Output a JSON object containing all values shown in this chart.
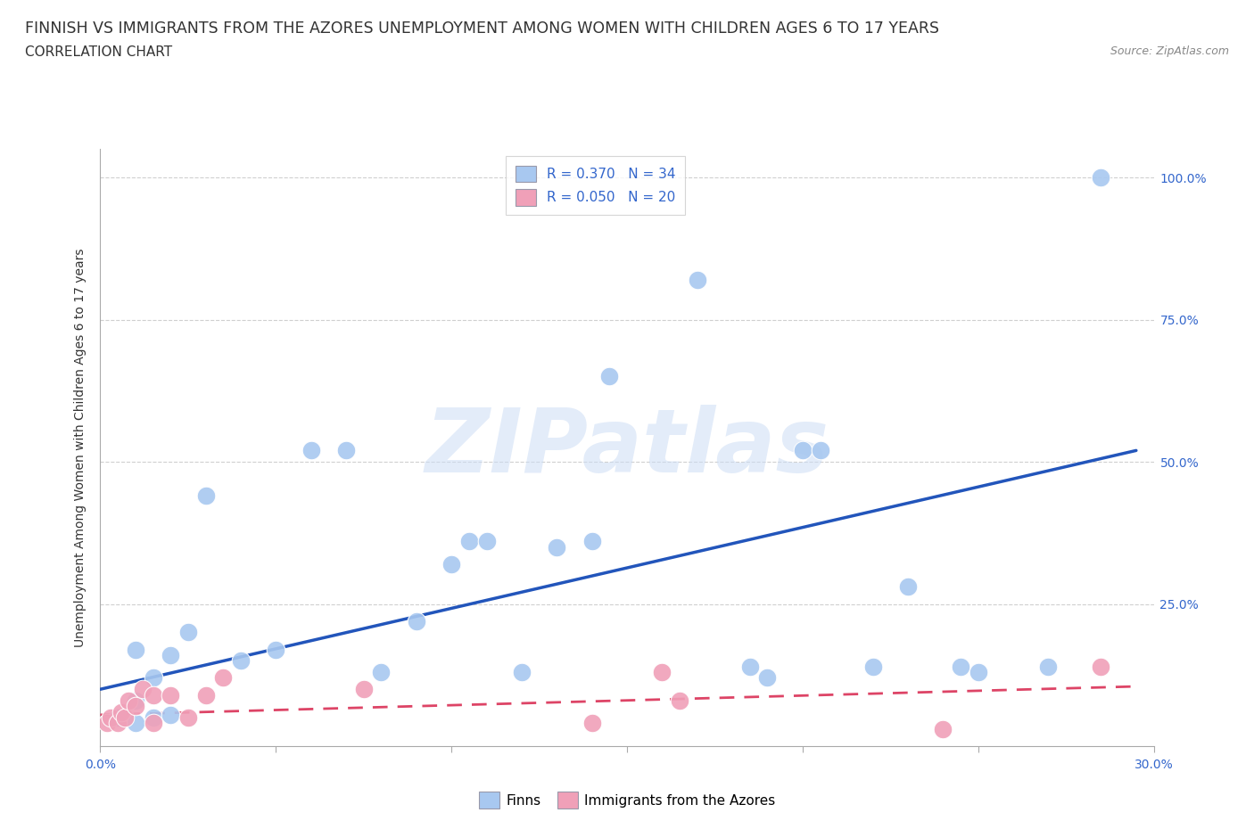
{
  "title": "FINNISH VS IMMIGRANTS FROM THE AZORES UNEMPLOYMENT AMONG WOMEN WITH CHILDREN AGES 6 TO 17 YEARS",
  "subtitle": "CORRELATION CHART",
  "source": "Source: ZipAtlas.com",
  "ylabel": "Unemployment Among Women with Children Ages 6 to 17 years",
  "xlim": [
    0.0,
    0.3
  ],
  "ylim": [
    0.0,
    1.05
  ],
  "xticks": [
    0.0,
    0.05,
    0.1,
    0.15,
    0.2,
    0.25,
    0.3
  ],
  "xtick_labels": [
    "0.0%",
    "",
    "",
    "",
    "",
    "",
    "30.0%"
  ],
  "yticks": [
    0.0,
    0.25,
    0.5,
    0.75,
    1.0
  ],
  "ytick_labels": [
    "",
    "25.0%",
    "50.0%",
    "75.0%",
    "100.0%"
  ],
  "watermark_text": "ZIPatlas",
  "finn_color": "#A8C8F0",
  "azores_color": "#F0A0B8",
  "finn_line_color": "#2255BB",
  "azores_line_color": "#DD4466",
  "r_finn": 0.37,
  "n_finn": 34,
  "r_azores": 0.05,
  "n_azores": 20,
  "finns_x": [
    0.005,
    0.01,
    0.01,
    0.01,
    0.015,
    0.015,
    0.02,
    0.02,
    0.025,
    0.03,
    0.04,
    0.05,
    0.06,
    0.07,
    0.08,
    0.09,
    0.1,
    0.105,
    0.11,
    0.12,
    0.13,
    0.14,
    0.145,
    0.17,
    0.185,
    0.19,
    0.2,
    0.205,
    0.22,
    0.23,
    0.245,
    0.25,
    0.27,
    0.285
  ],
  "finns_y": [
    0.05,
    0.04,
    0.08,
    0.17,
    0.05,
    0.12,
    0.055,
    0.16,
    0.2,
    0.44,
    0.15,
    0.17,
    0.52,
    0.52,
    0.13,
    0.22,
    0.32,
    0.36,
    0.36,
    0.13,
    0.35,
    0.36,
    0.65,
    0.82,
    0.14,
    0.12,
    0.52,
    0.52,
    0.14,
    0.28,
    0.14,
    0.13,
    0.14,
    1.0
  ],
  "azores_x": [
    0.002,
    0.003,
    0.005,
    0.006,
    0.007,
    0.008,
    0.01,
    0.012,
    0.015,
    0.015,
    0.02,
    0.025,
    0.03,
    0.035,
    0.075,
    0.14,
    0.16,
    0.165,
    0.24,
    0.285
  ],
  "azores_y": [
    0.04,
    0.05,
    0.04,
    0.06,
    0.05,
    0.08,
    0.07,
    0.1,
    0.09,
    0.04,
    0.09,
    0.05,
    0.09,
    0.12,
    0.1,
    0.04,
    0.13,
    0.08,
    0.03,
    0.14
  ],
  "finn_line_x": [
    0.0,
    0.295
  ],
  "finn_line_y": [
    0.1,
    0.52
  ],
  "azores_line_x": [
    0.0,
    0.295
  ],
  "azores_line_y": [
    0.055,
    0.105
  ],
  "background_color": "#FFFFFF",
  "grid_color": "#BBBBBB",
  "axis_color": "#AAAAAA",
  "text_color": "#333333",
  "blue_label_color": "#3366CC",
  "title_fontsize": 12.5,
  "subtitle_fontsize": 11,
  "axis_label_fontsize": 10,
  "tick_fontsize": 10,
  "legend_fontsize": 11
}
